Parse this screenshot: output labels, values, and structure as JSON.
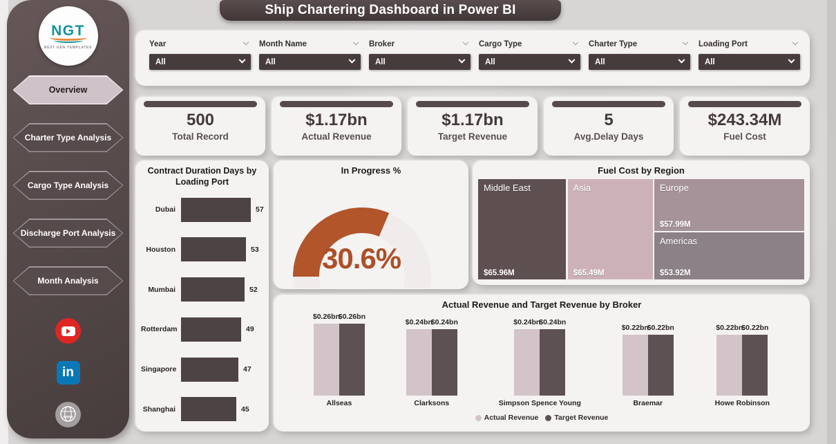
{
  "title": "Ship Chartering Dashboard in Power BI",
  "logo": {
    "text": "NGT",
    "subtext": "NEXT GEN TEMPLATES"
  },
  "sidebar": {
    "items": [
      {
        "label": "Overview",
        "active": true
      },
      {
        "label": "Charter Type Analysis",
        "active": false
      },
      {
        "label": "Cargo Type Analysis",
        "active": false
      },
      {
        "label": "Discharge Port Analysis",
        "active": false
      },
      {
        "label": "Month Analysis",
        "active": false
      }
    ],
    "social": [
      "youtube",
      "linkedin",
      "website"
    ]
  },
  "filters": [
    {
      "label": "Year",
      "value": "All"
    },
    {
      "label": "Month Name",
      "value": "All"
    },
    {
      "label": "Broker",
      "value": "All"
    },
    {
      "label": "Cargo Type",
      "value": "All"
    },
    {
      "label": "Charter Type",
      "value": "All"
    },
    {
      "label": "Loading Port",
      "value": "All"
    }
  ],
  "kpis": [
    {
      "value": "500",
      "label": "Total Record"
    },
    {
      "value": "$1.17bn",
      "label": "Actual Revenue"
    },
    {
      "value": "$1.17bn",
      "label": "Target Revenue"
    },
    {
      "value": "5",
      "label": "Avg.Delay Days"
    },
    {
      "value": "$243.34M",
      "label": "Fuel Cost"
    }
  ],
  "colors": {
    "accent_orange": "#b2552b",
    "bar_dark": "#4e4344",
    "actual_revenue": "#d3c4c9",
    "target_revenue": "#5d5153",
    "sidebar_dark": "#564a4a",
    "banner_dark": "#463b3b"
  },
  "chart_data": [
    {
      "type": "bar",
      "orientation": "horizontal",
      "title": "Contract Duration Days by Loading Port",
      "categories": [
        "Dubai",
        "Houston",
        "Mumbai",
        "Rotterdam",
        "Singapore",
        "Shanghai"
      ],
      "values": [
        57,
        53,
        52,
        49,
        47,
        45
      ],
      "xlim": [
        0,
        60
      ],
      "bar_color": "#4e4344"
    },
    {
      "type": "gauge",
      "title": "In Progress %",
      "value": 30.6,
      "value_label": "30.6%",
      "max": 100,
      "color": "#b2552b"
    },
    {
      "type": "treemap",
      "title": "Fuel Cost by Region",
      "items": [
        {
          "label": "Middle East",
          "value": 65.96,
          "value_label": "$65.96M",
          "color": "#5e4f51"
        },
        {
          "label": "Asia",
          "value": 65.49,
          "value_label": "$65.49M",
          "color": "#ccb2b8"
        },
        {
          "label": "Europe",
          "value": 57.99,
          "value_label": "$57.99M",
          "color": "#a59399"
        },
        {
          "label": "Americas",
          "value": 53.92,
          "value_label": "$53.92M",
          "color": "#8b8186"
        }
      ]
    },
    {
      "type": "bar",
      "orientation": "vertical",
      "title": "Actual Revenue and Target Revenue by Broker",
      "categories": [
        "Allseas",
        "Clarksons",
        "Simpson Spence Young",
        "Braemar",
        "Howe Robinson"
      ],
      "series": [
        {
          "name": "Actual Revenue",
          "color": "#d3c4c9",
          "values": [
            0.26,
            0.24,
            0.24,
            0.22,
            0.22
          ],
          "labels": [
            "$0.26bn",
            "$0.24bn",
            "$0.24bn",
            "$0.22bn",
            "$0.22bn"
          ]
        },
        {
          "name": "Target Revenue",
          "color": "#5d5153",
          "values": [
            0.26,
            0.24,
            0.24,
            0.22,
            0.22
          ],
          "labels": [
            "$0.26bn",
            "$0.24bn",
            "$0.24bn",
            "$0.22bn",
            "$0.22bn"
          ]
        }
      ],
      "legend_position": "bottom"
    }
  ]
}
